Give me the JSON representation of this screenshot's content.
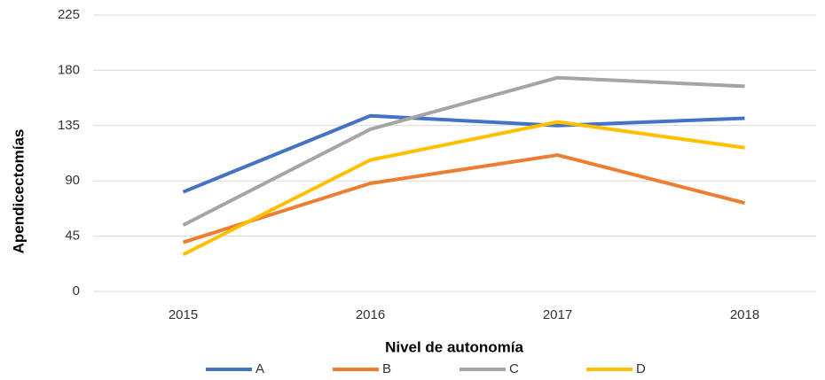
{
  "chart_data": {
    "type": "line",
    "x_label": "Nivel de autonomía",
    "y_label": "Apendicectomías",
    "categories": [
      "2015",
      "2016",
      "2017",
      "2018"
    ],
    "series": [
      {
        "name": "A",
        "color": "#4472c4",
        "values": [
          81,
          143,
          135,
          141
        ]
      },
      {
        "name": "B",
        "color": "#ed7d31",
        "values": [
          40,
          88,
          111,
          72
        ]
      },
      {
        "name": "C",
        "color": "#a5a5a5",
        "values": [
          54,
          132,
          174,
          167
        ]
      },
      {
        "name": "D",
        "color": "#ffc000",
        "values": [
          30,
          107,
          138,
          117
        ]
      }
    ],
    "ylim": [
      0,
      225
    ],
    "yticks": [
      0,
      45,
      90,
      135,
      180,
      225
    ],
    "grid": true,
    "legend": "bottom"
  }
}
